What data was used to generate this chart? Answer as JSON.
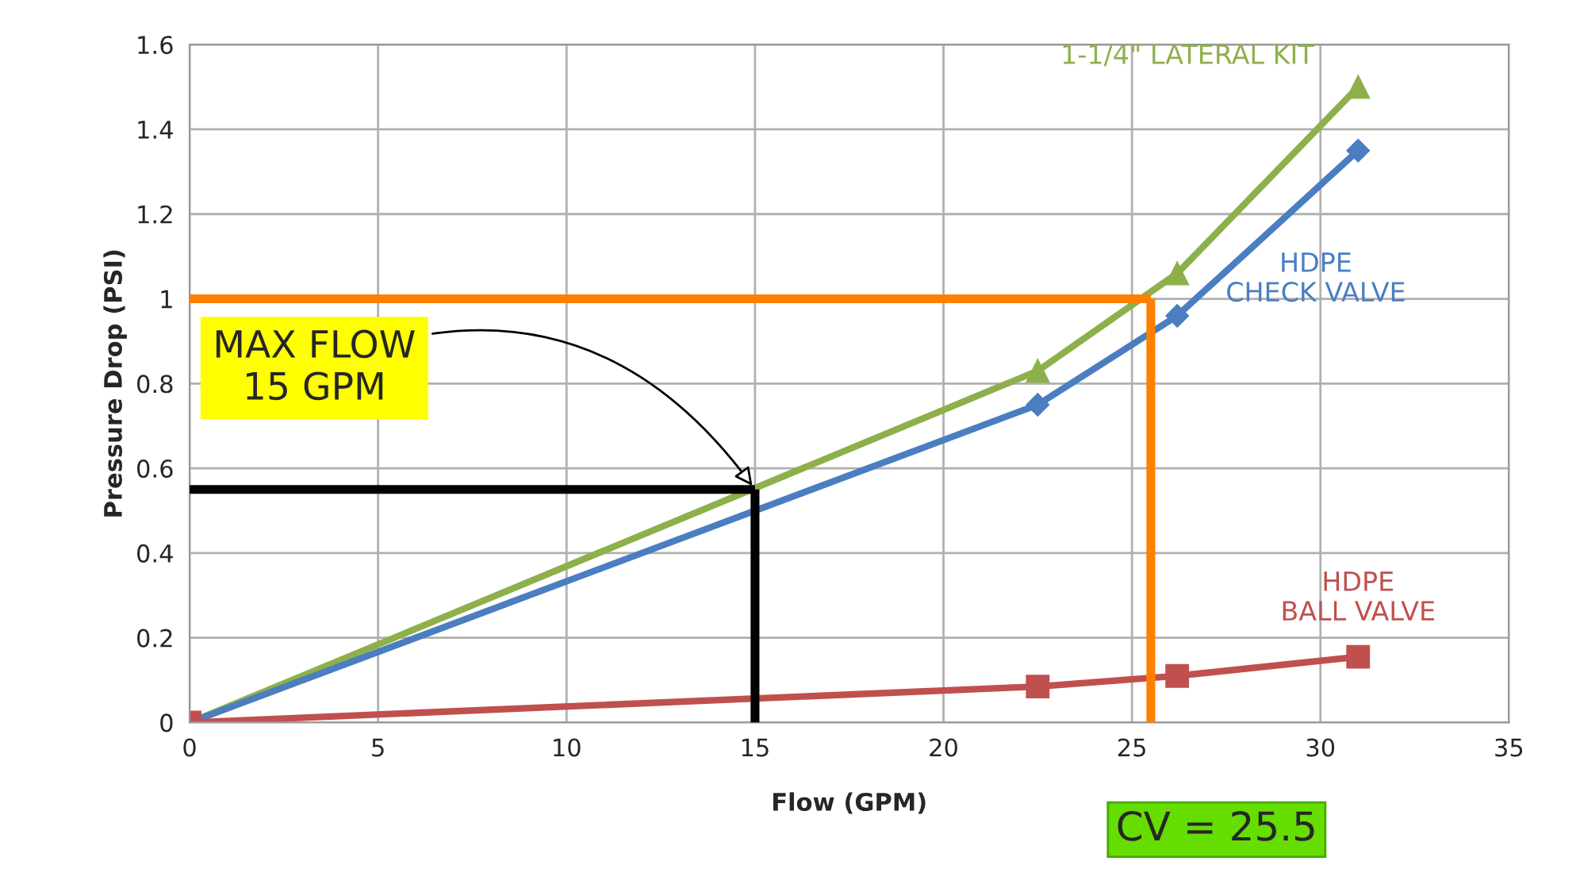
{
  "chart_data": {
    "type": "line",
    "xlabel": "Flow (GPM)",
    "ylabel": "Pressure Drop (PSI)",
    "xlim": [
      0,
      35
    ],
    "xticks": [
      0,
      5,
      10,
      15,
      20,
      25,
      30,
      35
    ],
    "ylim": [
      0,
      1.6
    ],
    "yticks": [
      0,
      0.2,
      0.4,
      0.6,
      0.8,
      1,
      1.2,
      1.4,
      1.6
    ],
    "grid": true,
    "series": [
      {
        "name": "1-1/4\" LATERAL KIT",
        "color": "#8db04a",
        "marker": "triangle",
        "x": [
          0,
          22.5,
          26.2,
          31
        ],
        "values": [
          0,
          0.83,
          1.06,
          1.5
        ]
      },
      {
        "name": "HDPE\nCHECK VALVE",
        "color": "#4a7ec0",
        "marker": "diamond",
        "x": [
          0,
          22.5,
          26.2,
          31
        ],
        "values": [
          0,
          0.75,
          0.96,
          1.35
        ]
      },
      {
        "name": "HDPE\nBALL VALVE",
        "color": "#c0504d",
        "marker": "square",
        "x": [
          0,
          22.5,
          26.2,
          31
        ],
        "values": [
          0,
          0.085,
          0.11,
          0.155
        ]
      }
    ],
    "ref_lines": [
      {
        "axis": "y",
        "value": 1,
        "color": "#ff7f00"
      },
      {
        "axis": "x",
        "value": 25.5,
        "color": "#ff7f00"
      },
      {
        "axis": "y",
        "value": 0.55,
        "color": "#000000"
      },
      {
        "axis": "x",
        "value": 15,
        "color": "#000000"
      }
    ],
    "annotations": [
      {
        "text": "MAX FLOW\n15 GPM",
        "x": 15,
        "y": 0.55
      },
      "CV = 25.5"
    ]
  }
}
